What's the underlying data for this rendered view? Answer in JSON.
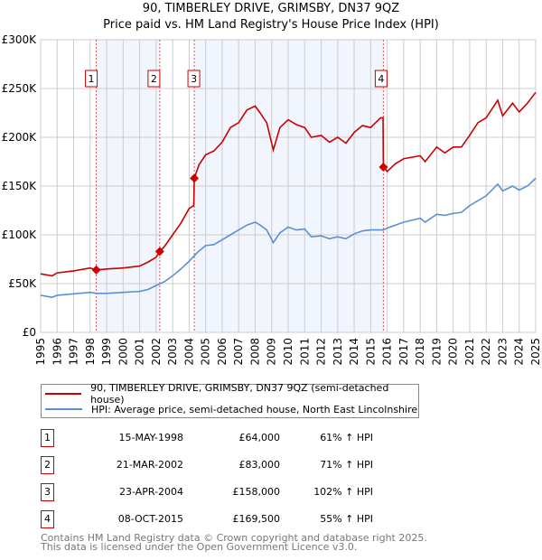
{
  "chart_data": {
    "type": "line",
    "title": "90, TIMBERLEY DRIVE, GRIMSBY, DN37 9QZ",
    "subtitle": "Price paid vs. HM Land Registry's House Price Index (HPI)",
    "xlim": [
      1995,
      2025
    ],
    "ylim": [
      0,
      300000
    ],
    "y_ticks": [
      {
        "v": 0,
        "label": "£0"
      },
      {
        "v": 50000,
        "label": "£50K"
      },
      {
        "v": 100000,
        "label": "£100K"
      },
      {
        "v": 150000,
        "label": "£150K"
      },
      {
        "v": 200000,
        "label": "£200K"
      },
      {
        "v": 250000,
        "label": "£250K"
      },
      {
        "v": 300000,
        "label": "£300K"
      }
    ],
    "x_ticks": [
      "1995",
      "1996",
      "1997",
      "1998",
      "1999",
      "2000",
      "2001",
      "2002",
      "2003",
      "2004",
      "2005",
      "2006",
      "2007",
      "2008",
      "2009",
      "2010",
      "2011",
      "2012",
      "2013",
      "2014",
      "2015",
      "2016",
      "2017",
      "2018",
      "2019",
      "2020",
      "2021",
      "2022",
      "2023",
      "2024",
      "2025"
    ],
    "grid": true,
    "series": [
      {
        "name": "90, TIMBERLEY DRIVE, GRIMSBY, DN37 9QZ (semi-detached house)",
        "color": "#cc0000",
        "points": [
          [
            1995,
            60
          ],
          [
            1995.7,
            58
          ],
          [
            1996,
            61
          ],
          [
            1997,
            63
          ],
          [
            1998,
            66
          ],
          [
            1998.37,
            64
          ],
          [
            1999,
            65
          ],
          [
            2000,
            66
          ],
          [
            2001,
            68
          ],
          [
            2001.5,
            72
          ],
          [
            2002,
            77
          ],
          [
            2002.22,
            83
          ],
          [
            2002.5,
            88
          ],
          [
            2003,
            100
          ],
          [
            2003.5,
            112
          ],
          [
            2004,
            127
          ],
          [
            2004.28,
            130
          ],
          [
            2004.31,
            158
          ],
          [
            2004.6,
            172
          ],
          [
            2005,
            182
          ],
          [
            2005.5,
            186
          ],
          [
            2006,
            195
          ],
          [
            2006.5,
            210
          ],
          [
            2007,
            215
          ],
          [
            2007.5,
            228
          ],
          [
            2008,
            232
          ],
          [
            2008.3,
            225
          ],
          [
            2008.7,
            215
          ],
          [
            2009.1,
            187
          ],
          [
            2009.5,
            210
          ],
          [
            2010,
            218
          ],
          [
            2010.5,
            213
          ],
          [
            2011,
            210
          ],
          [
            2011.4,
            200
          ],
          [
            2012,
            202
          ],
          [
            2012.5,
            195
          ],
          [
            2013,
            200
          ],
          [
            2013.5,
            194
          ],
          [
            2014,
            205
          ],
          [
            2014.5,
            212
          ],
          [
            2015,
            210
          ],
          [
            2015.6,
            220
          ],
          [
            2015.75,
            220
          ],
          [
            2015.77,
            169.5
          ],
          [
            2016,
            165
          ],
          [
            2016.5,
            173
          ],
          [
            2017,
            178
          ],
          [
            2018,
            181
          ],
          [
            2018.3,
            175
          ],
          [
            2019,
            190
          ],
          [
            2019.5,
            184
          ],
          [
            2020,
            190
          ],
          [
            2020.5,
            190
          ],
          [
            2021,
            202
          ],
          [
            2021.5,
            215
          ],
          [
            2022,
            220
          ],
          [
            2022.7,
            238
          ],
          [
            2023,
            222
          ],
          [
            2023.6,
            235
          ],
          [
            2024,
            226
          ],
          [
            2024.5,
            235
          ],
          [
            2025,
            246
          ]
        ]
      },
      {
        "name": "HPI: Average price, semi-detached house, North East Lincolnshire",
        "color": "#5b8fd4",
        "points": [
          [
            1995,
            38
          ],
          [
            1995.7,
            36
          ],
          [
            1996,
            38
          ],
          [
            1997,
            39.5
          ],
          [
            1998,
            41
          ],
          [
            1998.4,
            40
          ],
          [
            1999,
            40
          ],
          [
            2000,
            41
          ],
          [
            2001,
            42
          ],
          [
            2001.5,
            44
          ],
          [
            2002,
            48
          ],
          [
            2002.5,
            52
          ],
          [
            2003,
            58
          ],
          [
            2003.5,
            65
          ],
          [
            2004,
            73
          ],
          [
            2004.5,
            82
          ],
          [
            2005,
            89
          ],
          [
            2005.5,
            90
          ],
          [
            2006,
            95
          ],
          [
            2006.5,
            100
          ],
          [
            2007,
            105
          ],
          [
            2007.5,
            110
          ],
          [
            2008,
            113
          ],
          [
            2008.3,
            110
          ],
          [
            2008.7,
            105
          ],
          [
            2009.1,
            92
          ],
          [
            2009.5,
            102
          ],
          [
            2010,
            108
          ],
          [
            2010.5,
            105
          ],
          [
            2011,
            106
          ],
          [
            2011.4,
            98
          ],
          [
            2012,
            99
          ],
          [
            2012.5,
            96
          ],
          [
            2013,
            98
          ],
          [
            2013.5,
            96
          ],
          [
            2014,
            101
          ],
          [
            2014.5,
            104
          ],
          [
            2015,
            105
          ],
          [
            2015.77,
            105
          ],
          [
            2016,
            107
          ],
          [
            2017,
            113
          ],
          [
            2018,
            117
          ],
          [
            2018.3,
            113
          ],
          [
            2019,
            121
          ],
          [
            2019.5,
            120
          ],
          [
            2020,
            122
          ],
          [
            2020.5,
            123
          ],
          [
            2021,
            130
          ],
          [
            2021.5,
            135
          ],
          [
            2022,
            140
          ],
          [
            2022.7,
            152
          ],
          [
            2023,
            145
          ],
          [
            2023.6,
            150
          ],
          [
            2024,
            146
          ],
          [
            2024.5,
            150
          ],
          [
            2025,
            158
          ]
        ]
      }
    ],
    "y_unit": "thousands GBP",
    "sales": [
      {
        "id": "1",
        "x": 1998.37,
        "value": 64000,
        "date": "15-MAY-1998",
        "price": "£64,000",
        "hpi": "61% ↑ HPI"
      },
      {
        "id": "2",
        "x": 2002.22,
        "value": 83000,
        "date": "21-MAR-2002",
        "price": "£83,000",
        "hpi": "71% ↑ HPI"
      },
      {
        "id": "3",
        "x": 2004.31,
        "value": 158000,
        "date": "23-APR-2004",
        "price": "£158,000",
        "hpi": "102% ↑ HPI"
      },
      {
        "id": "4",
        "x": 2015.77,
        "value": 169500,
        "date": "08-OCT-2015",
        "price": "£169,500",
        "hpi": "55% ↑ HPI"
      }
    ],
    "shaded_ranges": [
      [
        1998.37,
        2002.22
      ],
      [
        2004.31,
        2015.77
      ]
    ]
  },
  "footer": {
    "line1": "Contains HM Land Registry data © Crown copyright and database right 2025.",
    "line2": "This data is licensed under the Open Government Licence v3.0."
  }
}
